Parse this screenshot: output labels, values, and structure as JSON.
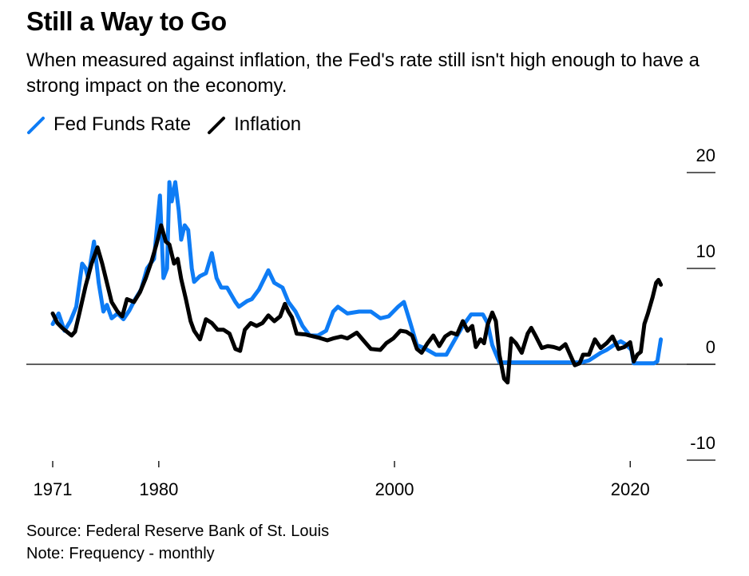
{
  "header": {
    "title": "Still a Way to Go",
    "subtitle": "When measured against inflation, the Fed's rate still isn't high enough to have a strong impact on the economy."
  },
  "legend": [
    {
      "label": "Fed Funds Rate",
      "color": "#0e7cf5",
      "icon": "diagonal-line-icon"
    },
    {
      "label": "Inflation",
      "color": "#000000",
      "icon": "diagonal-line-icon"
    }
  ],
  "footer": {
    "source": "Source: Federal Reserve Bank of St. Louis",
    "note": "Note: Frequency - monthly"
  },
  "chart_data": {
    "type": "line",
    "title": "Still a Way to Go",
    "xlabel": "",
    "ylabel": "",
    "xlim": [
      1971,
      2023
    ],
    "ylim": [
      -10,
      20
    ],
    "x_ticks": [
      1971,
      1980,
      2000,
      2020
    ],
    "x_tick_labels": [
      "1971",
      "1980",
      "2000",
      "2020"
    ],
    "y_ticks": [
      20,
      10,
      0,
      -10
    ],
    "y_tick_labels": [
      "20",
      "10",
      "0",
      "-10"
    ],
    "y_axis_position": "right",
    "grid": false,
    "legend_position": "top-left",
    "series": [
      {
        "name": "Fed Funds Rate",
        "color": "#0e7cf5",
        "points": [
          [
            1971.0,
            4.2
          ],
          [
            1971.5,
            5.3
          ],
          [
            1972.0,
            3.5
          ],
          [
            1972.5,
            4.5
          ],
          [
            1973.0,
            6.0
          ],
          [
            1973.5,
            10.5
          ],
          [
            1973.8,
            10.0
          ],
          [
            1974.0,
            9.0
          ],
          [
            1974.5,
            12.8
          ],
          [
            1974.9,
            8.5
          ],
          [
            1975.3,
            5.5
          ],
          [
            1975.6,
            6.2
          ],
          [
            1976.0,
            4.8
          ],
          [
            1976.5,
            5.3
          ],
          [
            1977.0,
            4.7
          ],
          [
            1977.5,
            5.6
          ],
          [
            1978.0,
            6.8
          ],
          [
            1978.5,
            7.8
          ],
          [
            1979.0,
            10.0
          ],
          [
            1979.6,
            11.0
          ],
          [
            1980.1,
            17.6
          ],
          [
            1980.4,
            9.0
          ],
          [
            1980.7,
            10.0
          ],
          [
            1980.9,
            19.0
          ],
          [
            1981.1,
            17.0
          ],
          [
            1981.4,
            19.0
          ],
          [
            1981.7,
            16.0
          ],
          [
            1981.9,
            13.0
          ],
          [
            1982.2,
            14.5
          ],
          [
            1982.5,
            14.0
          ],
          [
            1982.8,
            10.0
          ],
          [
            1983.0,
            8.6
          ],
          [
            1983.5,
            9.2
          ],
          [
            1984.0,
            9.5
          ],
          [
            1984.5,
            11.6
          ],
          [
            1984.9,
            9.0
          ],
          [
            1985.3,
            8.0
          ],
          [
            1985.8,
            8.0
          ],
          [
            1986.5,
            6.5
          ],
          [
            1986.8,
            6.0
          ],
          [
            1987.5,
            6.6
          ],
          [
            1987.9,
            6.8
          ],
          [
            1988.5,
            7.8
          ],
          [
            1989.3,
            9.8
          ],
          [
            1989.8,
            8.5
          ],
          [
            1990.5,
            8.0
          ],
          [
            1991.0,
            6.5
          ],
          [
            1991.6,
            5.5
          ],
          [
            1992.2,
            4.0
          ],
          [
            1992.8,
            3.0
          ],
          [
            1993.5,
            3.0
          ],
          [
            1994.2,
            3.5
          ],
          [
            1994.8,
            5.5
          ],
          [
            1995.2,
            6.0
          ],
          [
            1996.0,
            5.3
          ],
          [
            1997.0,
            5.5
          ],
          [
            1998.0,
            5.5
          ],
          [
            1998.8,
            4.8
          ],
          [
            1999.5,
            5.0
          ],
          [
            2000.3,
            6.0
          ],
          [
            2000.8,
            6.5
          ],
          [
            2001.3,
            4.5
          ],
          [
            2001.9,
            2.0
          ],
          [
            2002.5,
            1.7
          ],
          [
            2003.5,
            1.0
          ],
          [
            2004.4,
            1.0
          ],
          [
            2005.0,
            2.3
          ],
          [
            2005.8,
            4.0
          ],
          [
            2006.5,
            5.2
          ],
          [
            2007.5,
            5.2
          ],
          [
            2007.9,
            4.3
          ],
          [
            2008.3,
            2.0
          ],
          [
            2008.9,
            0.2
          ],
          [
            2015.9,
            0.2
          ],
          [
            2016.5,
            0.4
          ],
          [
            2017.0,
            0.8
          ],
          [
            2017.5,
            1.2
          ],
          [
            2018.0,
            1.5
          ],
          [
            2018.6,
            2.0
          ],
          [
            2019.2,
            2.4
          ],
          [
            2019.6,
            2.1
          ],
          [
            2020.1,
            1.5
          ],
          [
            2020.3,
            0.1
          ],
          [
            2022.0,
            0.1
          ],
          [
            2022.3,
            0.3
          ],
          [
            2022.6,
            2.6
          ]
        ]
      },
      {
        "name": "Inflation",
        "color": "#000000",
        "points": [
          [
            1971.0,
            5.3
          ],
          [
            1971.4,
            4.3
          ],
          [
            1971.8,
            3.8
          ],
          [
            1972.3,
            3.3
          ],
          [
            1972.6,
            3.0
          ],
          [
            1972.9,
            3.4
          ],
          [
            1973.3,
            5.5
          ],
          [
            1973.8,
            8.2
          ],
          [
            1974.3,
            10.5
          ],
          [
            1974.8,
            12.2
          ],
          [
            1975.2,
            10.5
          ],
          [
            1975.6,
            8.5
          ],
          [
            1976.0,
            6.5
          ],
          [
            1976.5,
            5.5
          ],
          [
            1976.9,
            5.0
          ],
          [
            1977.3,
            6.8
          ],
          [
            1977.9,
            6.5
          ],
          [
            1978.4,
            7.5
          ],
          [
            1978.9,
            9.0
          ],
          [
            1979.4,
            10.8
          ],
          [
            1979.8,
            12.5
          ],
          [
            1980.2,
            14.5
          ],
          [
            1980.6,
            12.8
          ],
          [
            1980.9,
            12.5
          ],
          [
            1981.3,
            10.5
          ],
          [
            1981.6,
            11.0
          ],
          [
            1981.9,
            8.9
          ],
          [
            1982.3,
            6.8
          ],
          [
            1982.7,
            4.5
          ],
          [
            1983.0,
            3.5
          ],
          [
            1983.5,
            2.6
          ],
          [
            1984.0,
            4.7
          ],
          [
            1984.5,
            4.3
          ],
          [
            1985.0,
            3.6
          ],
          [
            1985.5,
            3.6
          ],
          [
            1986.0,
            3.2
          ],
          [
            1986.5,
            1.6
          ],
          [
            1986.9,
            1.4
          ],
          [
            1987.3,
            3.6
          ],
          [
            1987.8,
            4.3
          ],
          [
            1988.3,
            4.0
          ],
          [
            1988.8,
            4.3
          ],
          [
            1989.3,
            5.1
          ],
          [
            1989.8,
            4.5
          ],
          [
            1990.3,
            5.0
          ],
          [
            1990.7,
            6.3
          ],
          [
            1991.0,
            5.5
          ],
          [
            1991.3,
            4.9
          ],
          [
            1991.7,
            3.2
          ],
          [
            1992.5,
            3.1
          ],
          [
            1993.5,
            2.8
          ],
          [
            1994.3,
            2.5
          ],
          [
            1994.8,
            2.7
          ],
          [
            1995.5,
            2.9
          ],
          [
            1996.0,
            2.7
          ],
          [
            1996.8,
            3.3
          ],
          [
            1997.5,
            2.3
          ],
          [
            1998.0,
            1.6
          ],
          [
            1998.8,
            1.5
          ],
          [
            1999.3,
            2.2
          ],
          [
            1999.9,
            2.7
          ],
          [
            2000.5,
            3.5
          ],
          [
            2001.0,
            3.4
          ],
          [
            2001.5,
            3.0
          ],
          [
            2001.9,
            1.6
          ],
          [
            2002.3,
            1.2
          ],
          [
            2002.8,
            2.2
          ],
          [
            2003.3,
            3.0
          ],
          [
            2003.8,
            1.9
          ],
          [
            2004.3,
            2.9
          ],
          [
            2004.8,
            3.3
          ],
          [
            2005.3,
            3.1
          ],
          [
            2005.8,
            4.5
          ],
          [
            2006.2,
            3.5
          ],
          [
            2006.6,
            4.0
          ],
          [
            2006.9,
            1.8
          ],
          [
            2007.3,
            2.6
          ],
          [
            2007.6,
            2.2
          ],
          [
            2007.9,
            4.1
          ],
          [
            2008.3,
            5.4
          ],
          [
            2008.6,
            4.5
          ],
          [
            2008.9,
            1.0
          ],
          [
            2009.3,
            -1.5
          ],
          [
            2009.6,
            -1.9
          ],
          [
            2009.9,
            2.7
          ],
          [
            2010.3,
            2.2
          ],
          [
            2010.8,
            1.2
          ],
          [
            2011.3,
            3.2
          ],
          [
            2011.6,
            3.8
          ],
          [
            2012.0,
            2.9
          ],
          [
            2012.5,
            1.7
          ],
          [
            2013.0,
            1.9
          ],
          [
            2013.5,
            1.8
          ],
          [
            2014.0,
            1.6
          ],
          [
            2014.5,
            2.1
          ],
          [
            2014.9,
            1.0
          ],
          [
            2015.3,
            -0.1
          ],
          [
            2015.7,
            0.1
          ],
          [
            2016.0,
            1.0
          ],
          [
            2016.5,
            1.0
          ],
          [
            2017.0,
            2.6
          ],
          [
            2017.5,
            1.7
          ],
          [
            2018.0,
            2.2
          ],
          [
            2018.5,
            2.9
          ],
          [
            2019.0,
            1.6
          ],
          [
            2019.5,
            1.8
          ],
          [
            2020.0,
            2.3
          ],
          [
            2020.3,
            0.3
          ],
          [
            2020.6,
            1.0
          ],
          [
            2020.9,
            1.3
          ],
          [
            2021.2,
            4.2
          ],
          [
            2021.5,
            5.3
          ],
          [
            2021.9,
            7.0
          ],
          [
            2022.2,
            8.5
          ],
          [
            2022.4,
            8.8
          ],
          [
            2022.6,
            8.3
          ]
        ]
      }
    ]
  }
}
